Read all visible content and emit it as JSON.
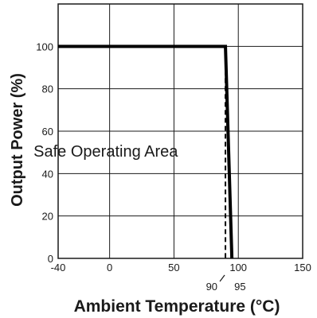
{
  "chart_data": {
    "type": "line",
    "xlabel": "Ambient Temperature (°C)",
    "ylabel": "Output Power (%)",
    "xlim": [
      -40,
      150
    ],
    "ylim": [
      0,
      120
    ],
    "grid": true,
    "x_ticks": [
      {
        "value": -40,
        "label": "-40"
      },
      {
        "value": 0,
        "label": "0"
      },
      {
        "value": 50,
        "label": "50"
      },
      {
        "value": 100,
        "label": "100"
      },
      {
        "value": 150,
        "label": "150"
      }
    ],
    "y_ticks": [
      {
        "value": 0,
        "label": "0"
      },
      {
        "value": 20,
        "label": "20"
      },
      {
        "value": 40,
        "label": "40"
      },
      {
        "value": 60,
        "label": "60"
      },
      {
        "value": 80,
        "label": "80"
      },
      {
        "value": 100,
        "label": "100"
      }
    ],
    "series": [
      {
        "style": "solid",
        "x": [
          -40,
          90,
          95
        ],
        "y": [
          100,
          100,
          0
        ]
      },
      {
        "style": "dashed",
        "x": [
          90,
          90
        ],
        "y": [
          100,
          0
        ]
      }
    ],
    "annotations": [
      {
        "text": "Safe Operating Area",
        "x": -3,
        "y": 48
      },
      {
        "text": "90",
        "x": 90,
        "y": 0,
        "below_axis": true
      },
      {
        "text": "95",
        "x": 95,
        "y": 0,
        "below_axis": true
      }
    ]
  }
}
